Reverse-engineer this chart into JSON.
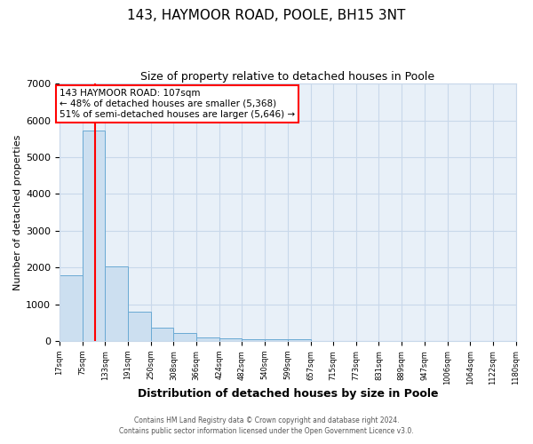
{
  "title": "143, HAYMOOR ROAD, POOLE, BH15 3NT",
  "subtitle": "Size of property relative to detached houses in Poole",
  "xlabel": "Distribution of detached houses by size in Poole",
  "ylabel": "Number of detached properties",
  "bin_labels": [
    "17sqm",
    "75sqm",
    "133sqm",
    "191sqm",
    "250sqm",
    "308sqm",
    "366sqm",
    "424sqm",
    "482sqm",
    "540sqm",
    "599sqm",
    "657sqm",
    "715sqm",
    "773sqm",
    "831sqm",
    "889sqm",
    "947sqm",
    "1006sqm",
    "1064sqm",
    "1122sqm",
    "1180sqm"
  ],
  "bar_values": [
    1780,
    5720,
    2040,
    790,
    360,
    215,
    105,
    75,
    50,
    60,
    50,
    0,
    0,
    0,
    0,
    0,
    0,
    0,
    0,
    0
  ],
  "bar_color": "#ccdff0",
  "bar_edge_color": "#6aaad4",
  "vline_x": 107,
  "vline_color": "red",
  "annotation_line1": "143 HAYMOOR ROAD: 107sqm",
  "annotation_line2": "← 48% of detached houses are smaller (5,368)",
  "annotation_line3": "51% of semi-detached houses are larger (5,646) →",
  "annotation_box_color": "white",
  "annotation_box_edge_color": "red",
  "ylim": [
    0,
    7000
  ],
  "yticks": [
    0,
    1000,
    2000,
    3000,
    4000,
    5000,
    6000,
    7000
  ],
  "footnote1": "Contains HM Land Registry data © Crown copyright and database right 2024.",
  "footnote2": "Contains public sector information licensed under the Open Government Licence v3.0.",
  "bin_edges": [
    17,
    75,
    133,
    191,
    250,
    308,
    366,
    424,
    482,
    540,
    599,
    657,
    715,
    773,
    831,
    889,
    947,
    1006,
    1064,
    1122,
    1180
  ],
  "background_color": "#ffffff",
  "grid_color": "#c8d8ea",
  "plot_bg_color": "#e8f0f8"
}
